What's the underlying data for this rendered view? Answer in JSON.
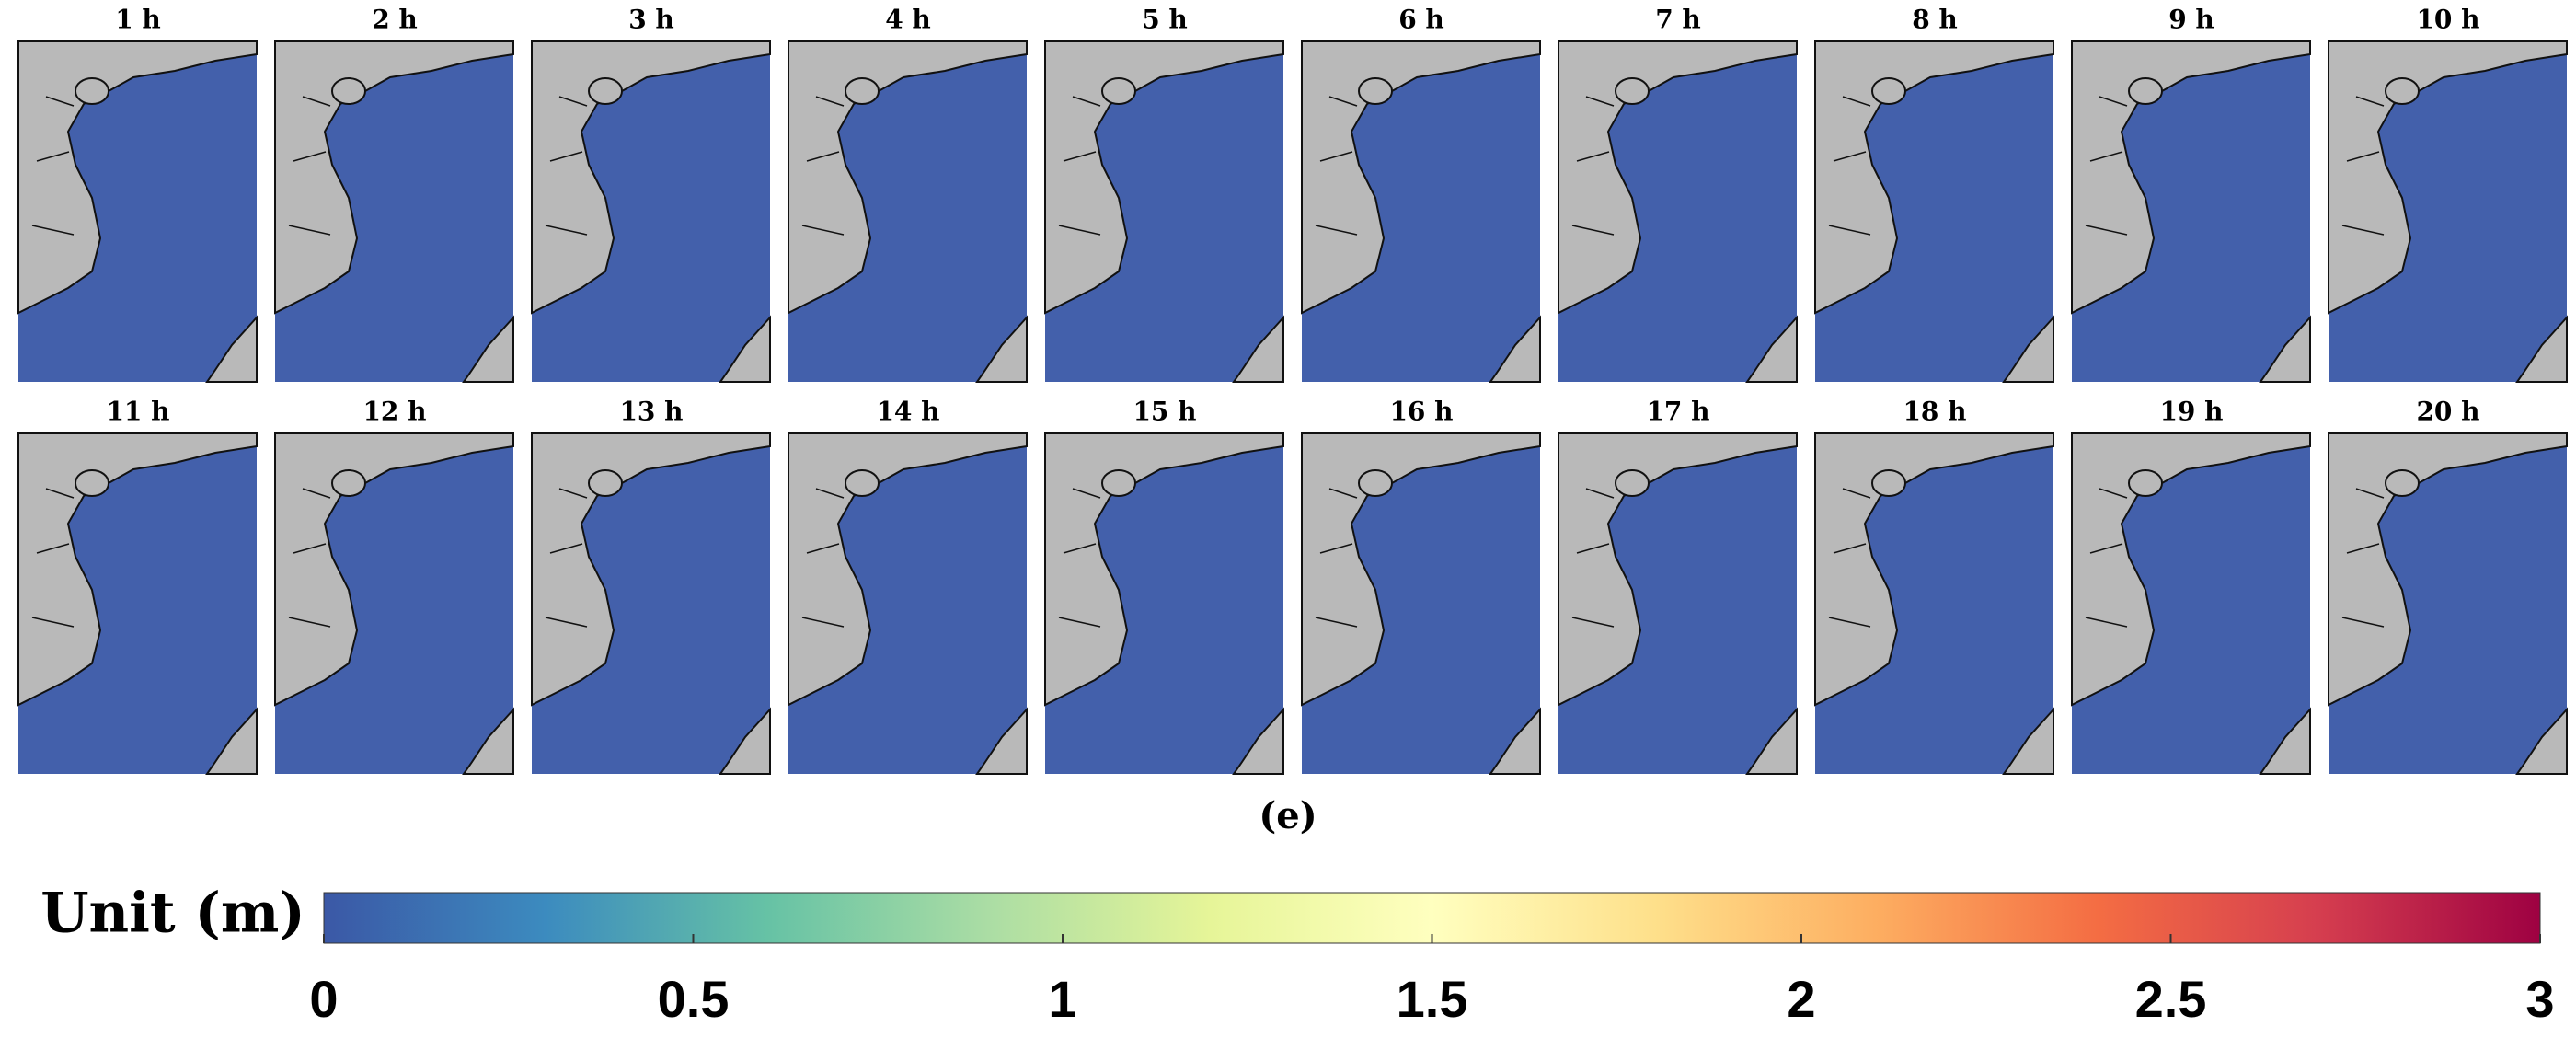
{
  "panels": [
    {
      "title": "1 h"
    },
    {
      "title": "2 h"
    },
    {
      "title": "3 h"
    },
    {
      "title": "4 h"
    },
    {
      "title": "5 h"
    },
    {
      "title": "6 h"
    },
    {
      "title": "7 h"
    },
    {
      "title": "8 h"
    },
    {
      "title": "9 h"
    },
    {
      "title": "10 h"
    },
    {
      "title": "11 h"
    },
    {
      "title": "12 h"
    },
    {
      "title": "13 h"
    },
    {
      "title": "14 h"
    },
    {
      "title": "15 h"
    },
    {
      "title": "16 h"
    },
    {
      "title": "17 h"
    },
    {
      "title": "18 h"
    },
    {
      "title": "19 h"
    },
    {
      "title": "20 h"
    }
  ],
  "caption": "(e)",
  "colorbar": {
    "label": "Unit (m)",
    "lim": [
      0,
      3
    ],
    "ticks": [
      0,
      0.5,
      1,
      1.5,
      2,
      2.5,
      3
    ],
    "colors": [
      "#3b58a6",
      "#3c8bbf",
      "#66c2a5",
      "#abdda4",
      "#e6f598",
      "#ffffbf",
      "#fee08b",
      "#fdae61",
      "#f46d43",
      "#d53e4f",
      "#9e0142"
    ]
  }
}
